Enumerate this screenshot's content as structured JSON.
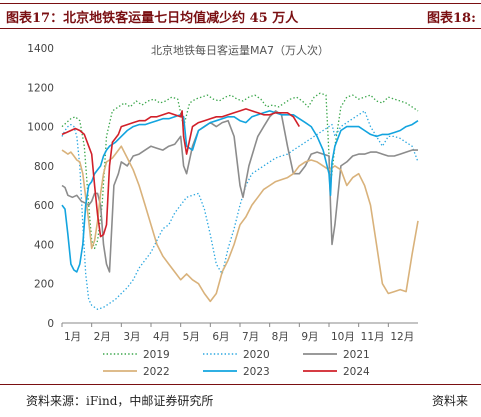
{
  "figure": {
    "title": "图表17：北京地铁客运量七日均值减少约 45 万人",
    "right_title": "图表18:",
    "source": "资料来源：iFind，中邮证券研究所",
    "right_source": "资料来"
  },
  "chart_data": {
    "type": "line",
    "title": "北京地铁每日客运量MA7（万人次）",
    "ylim": [
      0,
      1400
    ],
    "yticks": [
      0,
      200,
      400,
      600,
      800,
      1000,
      1200,
      1400
    ],
    "xticks": [
      "1月",
      "2月",
      "3月",
      "4月",
      "5月",
      "6月",
      "7月",
      "8月",
      "9月",
      "10月",
      "11月",
      "12月"
    ],
    "legend_position": "bottom",
    "series": [
      {
        "name": "2019",
        "color": "#3aa64a",
        "style": "dotted",
        "x": [
          1,
          1.15,
          1.3,
          1.45,
          1.6,
          1.75,
          1.9,
          2,
          2.1,
          2.2,
          2.35,
          2.5,
          2.7,
          2.9,
          3.1,
          3.3,
          3.5,
          3.7,
          3.9,
          4.1,
          4.3,
          4.5,
          4.7,
          4.9,
          5.1,
          5.3,
          5.5,
          5.7,
          5.9,
          6.1,
          6.3,
          6.5,
          6.7,
          6.9,
          7.1,
          7.3,
          7.5,
          7.7,
          7.9,
          8.1,
          8.3,
          8.5,
          8.7,
          8.9,
          9.1,
          9.3,
          9.5,
          9.7,
          9.9,
          10.05,
          10.2,
          10.4,
          10.6,
          10.8,
          11,
          11.2,
          11.4,
          11.6,
          11.8,
          12,
          12.2,
          12.4,
          12.6,
          12.8,
          13
        ],
        "y": [
          1000,
          1020,
          1040,
          1050,
          1030,
          900,
          600,
          420,
          380,
          420,
          600,
          950,
          1080,
          1100,
          1120,
          1100,
          1130,
          1110,
          1130,
          1140,
          1120,
          1130,
          1150,
          1140,
          1000,
          1120,
          1140,
          1150,
          1160,
          1140,
          1130,
          1150,
          1160,
          1140,
          1130,
          1150,
          1160,
          1140,
          1100,
          1110,
          1100,
          1120,
          1140,
          1150,
          1130,
          1100,
          1150,
          1170,
          1160,
          700,
          900,
          1100,
          1150,
          1160,
          1140,
          1150,
          1160,
          1130,
          1120,
          1150,
          1140,
          1130,
          1120,
          1100,
          1080
        ]
      },
      {
        "name": "2020",
        "color": "#2aa7e0",
        "style": "dotted",
        "x": [
          1,
          1.1,
          1.2,
          1.3,
          1.4,
          1.5,
          1.6,
          1.7,
          1.8,
          1.9,
          2,
          2.2,
          2.4,
          2.6,
          2.8,
          3,
          3.2,
          3.4,
          3.6,
          3.8,
          4,
          4.2,
          4.4,
          4.6,
          4.8,
          5,
          5.2,
          5.4,
          5.6,
          5.8,
          6,
          6.2,
          6.4,
          6.6,
          6.8,
          7,
          7.2,
          7.4,
          7.6,
          7.8,
          8,
          8.2,
          8.4,
          8.6,
          8.8,
          9,
          9.2,
          9.4,
          9.6,
          9.8,
          10,
          10.1,
          10.2,
          10.4,
          10.6,
          10.8,
          11,
          11.2,
          11.4,
          11.6,
          11.8,
          12,
          12.2,
          12.4,
          12.6,
          12.8,
          13
        ],
        "y": [
          950,
          980,
          1000,
          1010,
          1000,
          950,
          800,
          500,
          250,
          120,
          90,
          70,
          80,
          100,
          120,
          150,
          180,
          220,
          280,
          320,
          360,
          420,
          480,
          500,
          560,
          600,
          640,
          650,
          660,
          580,
          450,
          300,
          250,
          380,
          480,
          600,
          700,
          760,
          780,
          800,
          820,
          840,
          850,
          860,
          880,
          900,
          920,
          940,
          960,
          980,
          1000,
          1010,
          950,
          1000,
          1020,
          1040,
          1060,
          1080,
          1000,
          950,
          900,
          950,
          950,
          940,
          920,
          900,
          820
        ]
      },
      {
        "name": "2021",
        "color": "#8c8c8c",
        "style": "solid",
        "x": [
          1,
          1.1,
          1.2,
          1.35,
          1.5,
          1.65,
          1.8,
          1.9,
          2,
          2.1,
          2.2,
          2.3,
          2.4,
          2.5,
          2.6,
          2.75,
          2.9,
          3,
          3.2,
          3.4,
          3.6,
          3.8,
          4,
          4.2,
          4.4,
          4.6,
          4.8,
          5,
          5.1,
          5.2,
          5.4,
          5.6,
          5.8,
          6,
          6.2,
          6.4,
          6.6,
          6.8,
          7,
          7.1,
          7.3,
          7.5,
          7.6,
          7.8,
          8,
          8.2,
          8.4,
          8.6,
          8.8,
          9,
          9.2,
          9.4,
          9.6,
          9.8,
          10,
          10.05,
          10.1,
          10.2,
          10.4,
          10.6,
          10.8,
          11,
          11.2,
          11.4,
          11.6,
          11.8,
          12,
          12.2,
          12.4,
          12.6,
          12.8,
          13
        ],
        "y": [
          700,
          690,
          650,
          640,
          650,
          620,
          610,
          600,
          620,
          660,
          660,
          600,
          400,
          300,
          260,
          700,
          760,
          820,
          800,
          850,
          860,
          880,
          900,
          890,
          880,
          900,
          910,
          950,
          800,
          760,
          900,
          980,
          1000,
          1020,
          1000,
          1020,
          1030,
          950,
          700,
          640,
          800,
          900,
          950,
          1000,
          1050,
          1080,
          1060,
          900,
          760,
          760,
          800,
          860,
          870,
          860,
          850,
          600,
          400,
          500,
          800,
          820,
          850,
          860,
          860,
          870,
          870,
          860,
          850,
          850,
          860,
          870,
          880,
          880
        ]
      },
      {
        "name": "2022",
        "color": "#d9b27b",
        "style": "solid",
        "x": [
          1,
          1.1,
          1.2,
          1.3,
          1.4,
          1.5,
          1.6,
          1.7,
          1.8,
          1.9,
          2,
          2.1,
          2.2,
          2.3,
          2.4,
          2.5,
          2.6,
          2.7,
          2.8,
          2.9,
          3,
          3.2,
          3.4,
          3.6,
          3.8,
          4,
          4.2,
          4.4,
          4.6,
          4.8,
          5,
          5.2,
          5.4,
          5.6,
          5.8,
          6,
          6.2,
          6.4,
          6.6,
          6.8,
          7,
          7.2,
          7.4,
          7.6,
          7.8,
          8,
          8.2,
          8.4,
          8.6,
          8.8,
          9,
          9.2,
          9.4,
          9.6,
          9.8,
          10,
          10.2,
          10.4,
          10.6,
          10.8,
          11,
          11.2,
          11.4,
          11.6,
          11.8,
          12,
          12.2,
          12.4,
          12.6,
          12.8,
          13
        ],
        "y": [
          880,
          870,
          860,
          870,
          850,
          830,
          820,
          760,
          640,
          520,
          380,
          420,
          520,
          660,
          760,
          820,
          830,
          840,
          860,
          880,
          900,
          840,
          780,
          700,
          600,
          500,
          400,
          340,
          300,
          260,
          220,
          250,
          220,
          200,
          150,
          110,
          150,
          260,
          320,
          400,
          500,
          540,
          600,
          640,
          680,
          700,
          720,
          730,
          740,
          760,
          800,
          820,
          830,
          820,
          800,
          780,
          800,
          780,
          700,
          740,
          760,
          700,
          600,
          400,
          200,
          150,
          160,
          170,
          160,
          350,
          520
        ]
      },
      {
        "name": "2023",
        "color": "#13a4df",
        "style": "solid",
        "x": [
          1,
          1.1,
          1.2,
          1.3,
          1.4,
          1.5,
          1.6,
          1.7,
          1.8,
          1.9,
          2,
          2.1,
          2.2,
          2.3,
          2.4,
          2.5,
          2.6,
          2.8,
          3,
          3.2,
          3.4,
          3.6,
          3.8,
          4,
          4.2,
          4.4,
          4.6,
          4.8,
          5,
          5.1,
          5.2,
          5.4,
          5.6,
          5.8,
          6,
          6.2,
          6.4,
          6.6,
          6.8,
          7,
          7.2,
          7.4,
          7.6,
          7.8,
          8,
          8.2,
          8.4,
          8.6,
          8.8,
          9,
          9.2,
          9.4,
          9.6,
          9.8,
          10,
          10.05,
          10.1,
          10.2,
          10.4,
          10.6,
          10.8,
          11,
          11.2,
          11.4,
          11.6,
          11.8,
          12,
          12.2,
          12.4,
          12.6,
          12.8,
          13
        ],
        "y": [
          600,
          580,
          450,
          300,
          270,
          260,
          300,
          400,
          600,
          700,
          720,
          760,
          780,
          800,
          850,
          880,
          900,
          920,
          950,
          980,
          1000,
          1010,
          1010,
          1020,
          1030,
          1040,
          1040,
          1050,
          1060,
          1050,
          900,
          880,
          980,
          1000,
          1020,
          1030,
          1040,
          1050,
          1050,
          1030,
          1020,
          1050,
          1060,
          1070,
          1080,
          1070,
          1060,
          1060,
          1060,
          1040,
          1020,
          1000,
          950,
          880,
          760,
          650,
          820,
          900,
          980,
          1000,
          1000,
          1000,
          980,
          960,
          950,
          960,
          960,
          970,
          980,
          1000,
          1010,
          1030
        ]
      },
      {
        "name": "2024",
        "color": "#d1202a",
        "style": "solid",
        "x": [
          1,
          1.15,
          1.3,
          1.45,
          1.6,
          1.75,
          1.9,
          2,
          2.1,
          2.2,
          2.3,
          2.4,
          2.5,
          2.6,
          2.7,
          2.8,
          2.9,
          3,
          3.2,
          3.4,
          3.6,
          3.8,
          4,
          4.2,
          4.4,
          4.6,
          4.8,
          5,
          5.05,
          5.1,
          5.2,
          5.4,
          5.6,
          5.8,
          6,
          6.2,
          6.4,
          6.6,
          6.8,
          7,
          7.2,
          7.4,
          7.6,
          7.8,
          8,
          8.2,
          8.4,
          8.6,
          8.8,
          9
        ],
        "y": [
          960,
          970,
          980,
          990,
          980,
          960,
          900,
          860,
          700,
          550,
          440,
          450,
          500,
          800,
          920,
          940,
          960,
          1000,
          1010,
          1020,
          1030,
          1030,
          1050,
          1050,
          1060,
          1070,
          1060,
          1050,
          1080,
          950,
          860,
          1000,
          1020,
          1030,
          1040,
          1050,
          1050,
          1060,
          1070,
          1080,
          1090,
          1080,
          1070,
          1060,
          1060,
          1070,
          1070,
          1070,
          1050,
          1000
        ]
      }
    ]
  }
}
